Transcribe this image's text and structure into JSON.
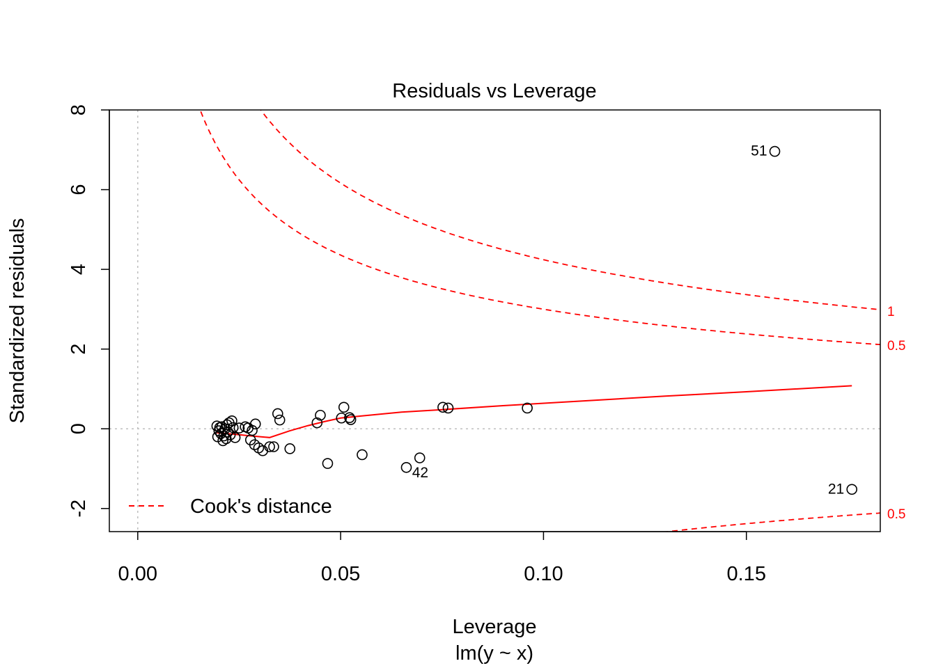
{
  "chart_data": {
    "type": "scatter",
    "title": "Residuals vs Leverage",
    "xlabel": "Leverage",
    "subtitle": "lm(y ~ x)",
    "ylabel": "Standardized residuals",
    "xlim": [
      -0.007,
      0.183
    ],
    "ylim": [
      -2.58,
      8.0
    ],
    "x_ticks": [
      0.0,
      0.05,
      0.1,
      0.15
    ],
    "x_tick_labels": [
      "0.00",
      "0.05",
      "0.10",
      "0.15"
    ],
    "y_ticks": [
      -2,
      0,
      2,
      4,
      6,
      8
    ],
    "y_tick_labels": [
      "-2",
      "0",
      "2",
      "4",
      "6",
      "8"
    ],
    "num_params": 2,
    "points": [
      {
        "x": 0.0195,
        "y": 0.07
      },
      {
        "x": 0.0197,
        "y": -0.2
      },
      {
        "x": 0.02,
        "y": -0.05
      },
      {
        "x": 0.0202,
        "y": 0.03
      },
      {
        "x": 0.0205,
        "y": -0.12
      },
      {
        "x": 0.0207,
        "y": 0.05
      },
      {
        "x": 0.021,
        "y": -0.3
      },
      {
        "x": 0.0212,
        "y": -0.18
      },
      {
        "x": 0.0215,
        "y": 0.0
      },
      {
        "x": 0.0218,
        "y": -0.25
      },
      {
        "x": 0.022,
        "y": 0.1
      },
      {
        "x": 0.0222,
        "y": -0.08
      },
      {
        "x": 0.0225,
        "y": 0.15
      },
      {
        "x": 0.0228,
        "y": -0.15
      },
      {
        "x": 0.0232,
        "y": 0.2
      },
      {
        "x": 0.0235,
        "y": 0.03
      },
      {
        "x": 0.024,
        "y": -0.22
      },
      {
        "x": 0.025,
        "y": 0.02
      },
      {
        "x": 0.0265,
        "y": 0.05
      },
      {
        "x": 0.0272,
        "y": 0.02
      },
      {
        "x": 0.0278,
        "y": -0.28
      },
      {
        "x": 0.0282,
        "y": -0.04
      },
      {
        "x": 0.0288,
        "y": -0.4
      },
      {
        "x": 0.029,
        "y": 0.12
      },
      {
        "x": 0.0298,
        "y": -0.48
      },
      {
        "x": 0.0308,
        "y": -0.55
      },
      {
        "x": 0.0325,
        "y": -0.45
      },
      {
        "x": 0.0335,
        "y": -0.45
      },
      {
        "x": 0.0345,
        "y": 0.38
      },
      {
        "x": 0.035,
        "y": 0.22
      },
      {
        "x": 0.0375,
        "y": -0.5
      },
      {
        "x": 0.0442,
        "y": 0.15
      },
      {
        "x": 0.045,
        "y": 0.34
      },
      {
        "x": 0.0468,
        "y": -0.87
      },
      {
        "x": 0.0502,
        "y": 0.27
      },
      {
        "x": 0.0508,
        "y": 0.54
      },
      {
        "x": 0.0522,
        "y": 0.28
      },
      {
        "x": 0.0525,
        "y": 0.23
      },
      {
        "x": 0.0553,
        "y": -0.65
      },
      {
        "x": 0.0662,
        "y": -0.97
      },
      {
        "x": 0.0695,
        "y": -0.73,
        "label": "42"
      },
      {
        "x": 0.0752,
        "y": 0.54
      },
      {
        "x": 0.0765,
        "y": 0.52
      },
      {
        "x": 0.096,
        "y": 0.52
      },
      {
        "x": 0.157,
        "y": 6.96,
        "label": "51"
      },
      {
        "x": 0.176,
        "y": -1.52,
        "label": "21"
      }
    ],
    "smoother": {
      "x": [
        0.0195,
        0.022,
        0.025,
        0.028,
        0.0325,
        0.0375,
        0.042,
        0.046,
        0.05,
        0.055,
        0.065,
        0.075,
        0.09,
        0.11,
        0.13,
        0.15,
        0.176
      ],
      "y": [
        -0.1,
        -0.12,
        -0.15,
        -0.18,
        -0.22,
        -0.05,
        0.08,
        0.18,
        0.27,
        0.32,
        0.42,
        0.48,
        0.58,
        0.7,
        0.82,
        0.93,
        1.08
      ]
    },
    "cooks_levels": [
      0.5,
      1
    ],
    "cooks_labels": {
      "upper_1": "1",
      "upper_05": "0.5",
      "lower_05": "0.5"
    },
    "legend": {
      "label": "Cook's distance",
      "position": "bottom-left"
    },
    "colors": {
      "points": "#000000",
      "smoother": "#ff0000",
      "cooks": "#ff0000",
      "reference": "#bebebe",
      "axis": "#000000"
    }
  }
}
